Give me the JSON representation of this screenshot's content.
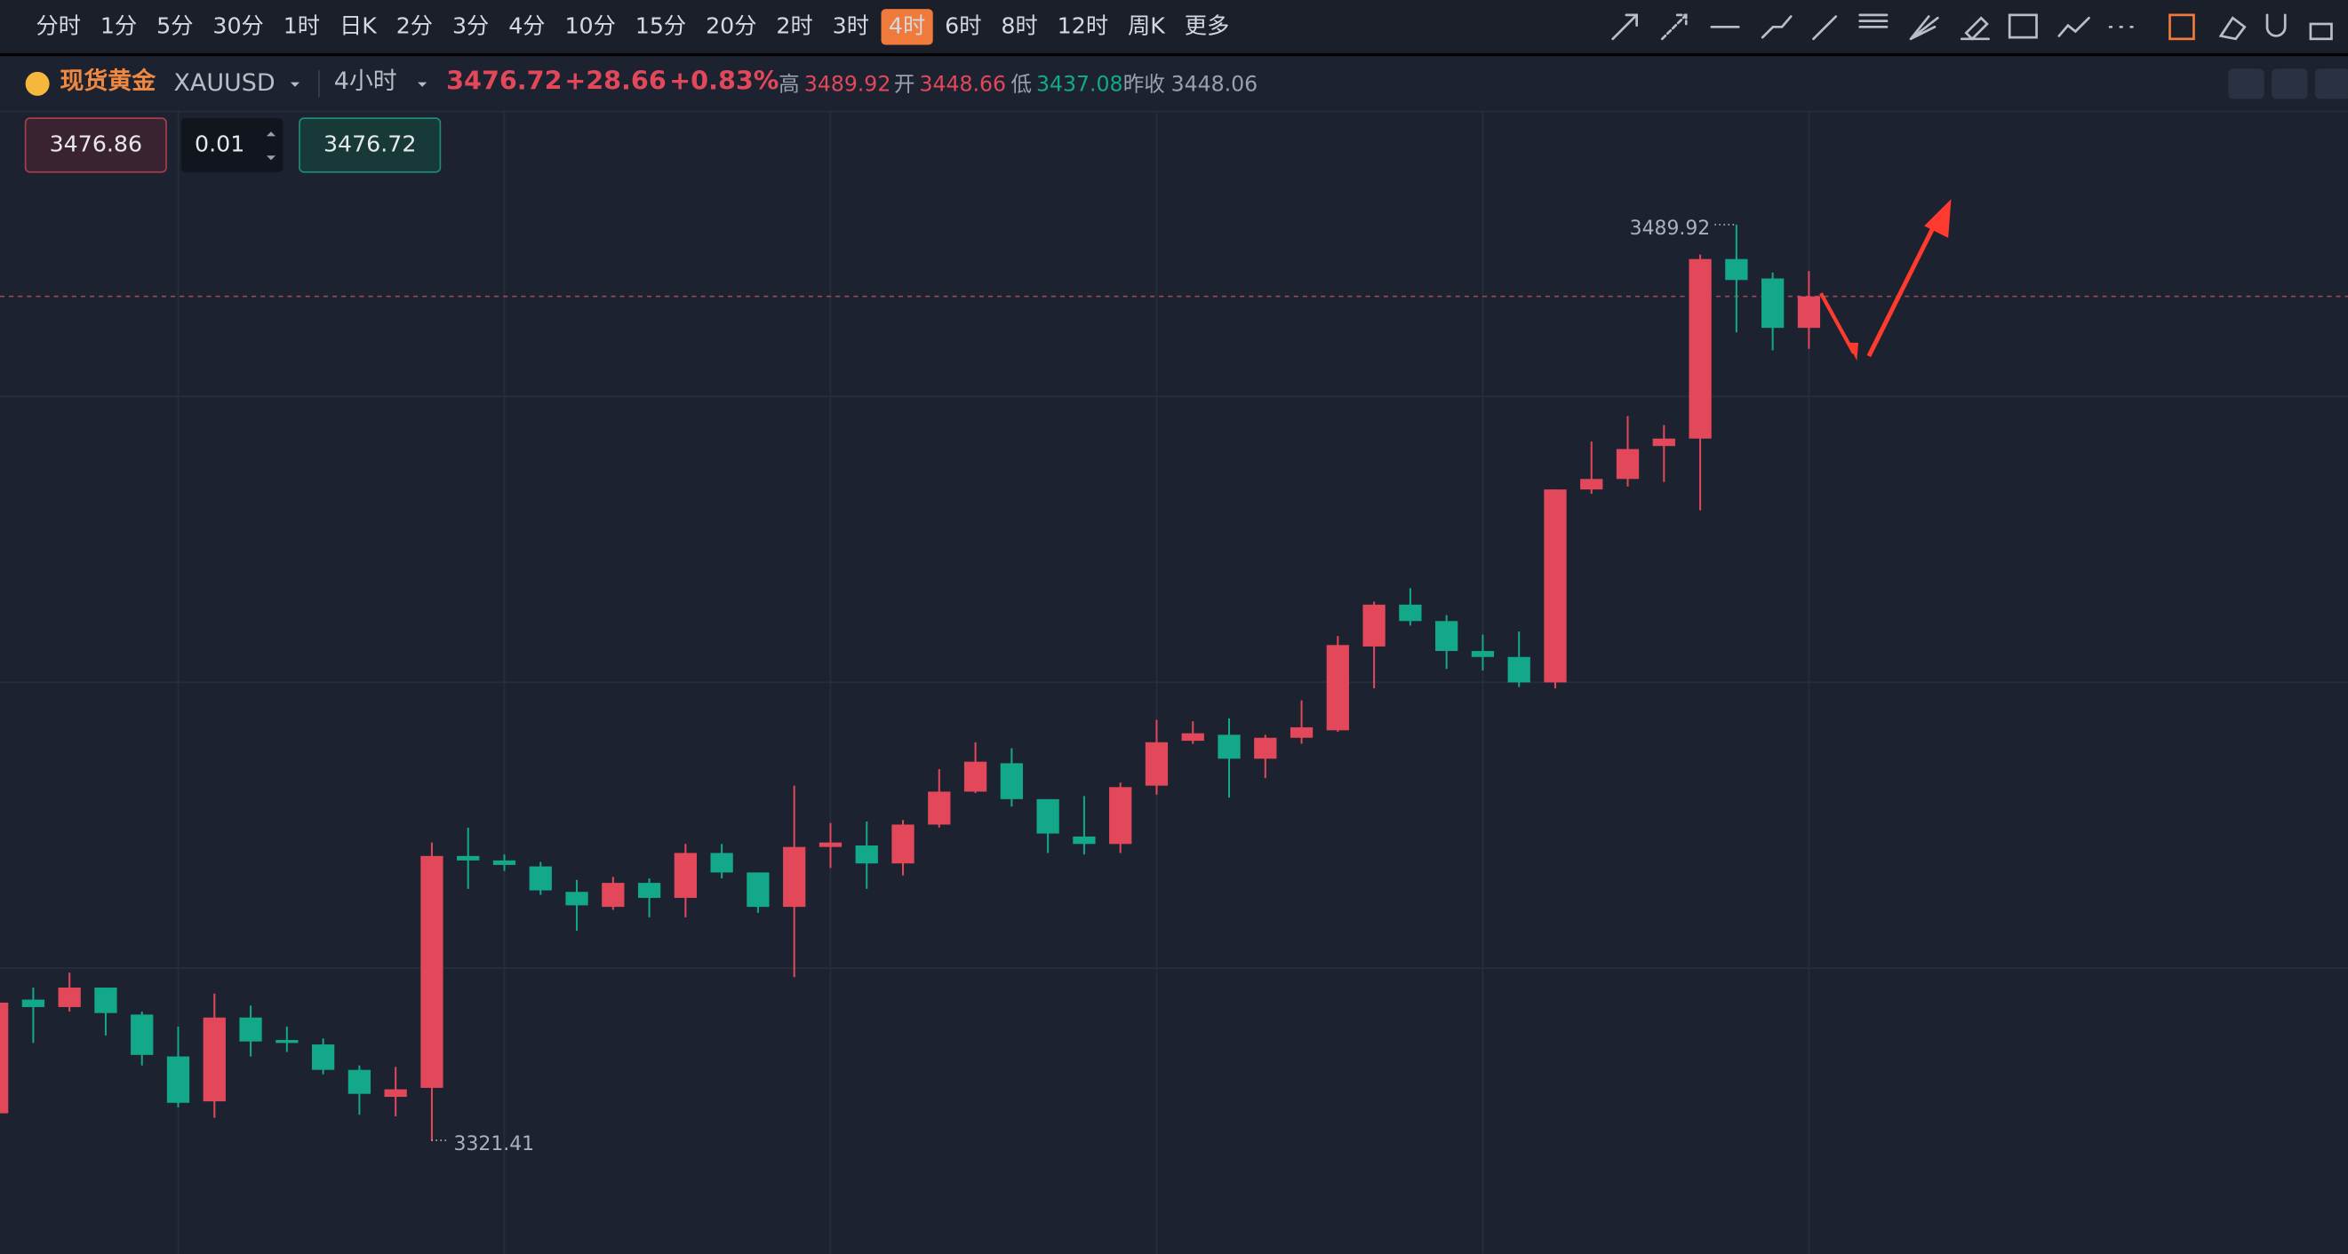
{
  "toolbar": {
    "periods": [
      "分时",
      "1分",
      "5分",
      "30分",
      "1时",
      "日K",
      "2分",
      "3分",
      "4分",
      "10分",
      "15分",
      "20分",
      "2时",
      "3时",
      "4时",
      "6时",
      "8时",
      "12时",
      "周K",
      "更多"
    ],
    "selected": 14
  },
  "header": {
    "name": "现货黄金",
    "symbol": "XAUUSD",
    "interval": "4小时",
    "price": "3476.72",
    "change": "+28.66",
    "change_pct": "+0.83%",
    "high_label": "高",
    "high": "3489.92",
    "open_label": "开",
    "open": "3448.66",
    "low_label": "低",
    "low": "3437.08",
    "prev_label": "昨收",
    "prev_close": "3448.06"
  },
  "order": {
    "sell": "3476.86",
    "lots": "0.01",
    "buy": "3476.72"
  },
  "chart_data": {
    "type": "candlestick",
    "up_color": "#e2485a",
    "down_color": "#13a88a",
    "ylim": [
      3300.5,
      3510.6
    ],
    "ygrid": [
      3353.1,
      3405.7,
      3458.3
    ],
    "xgrid": [
      5,
      14,
      23,
      32,
      41,
      50
    ],
    "price_line": 3476.72,
    "high_marker": 3489.92,
    "low_marker": 3321.41,
    "open": [
      3326.39,
      3347.31,
      3345.94,
      3349.52,
      3344.56,
      3336.85,
      3328.59,
      3344.01,
      3339.88,
      3339.06,
      3334.38,
      3329.42,
      3331.07,
      3373.74,
      3372.92,
      3371.82,
      3367.14,
      3364.38,
      3368.79,
      3366.03,
      3374.29,
      3370.71,
      3364.38,
      3375.4,
      3375.67,
      3372.37,
      3379.52,
      3385.58,
      3390.81,
      3384.2,
      3377.32,
      3375.95,
      3386.68,
      3394.94,
      3396.04,
      3391.64,
      3395.49,
      3396.87,
      3412.29,
      3419.99,
      3416.97,
      3411.46,
      3410.36,
      3405.68,
      3441.19,
      3443.12,
      3449.18,
      3450.55,
      3483.59,
      3480.01,
      3470.92
    ],
    "high": [
      3346.76,
      3349.52,
      3352.27,
      3349.52,
      3345.11,
      3342.36,
      3348.42,
      3346.21,
      3342.36,
      3340.16,
      3335.2,
      3334.93,
      3376.22,
      3378.97,
      3374.02,
      3372.64,
      3369.34,
      3369.89,
      3369.61,
      3375.95,
      3375.95,
      3370.71,
      3386.68,
      3379.8,
      3380.08,
      3380.35,
      3389.71,
      3394.67,
      3393.56,
      3384.2,
      3384.76,
      3387.23,
      3398.8,
      3398.52,
      3399.07,
      3396.04,
      3402.37,
      3414.21,
      3420.54,
      3423.02,
      3418.07,
      3414.49,
      3415.04,
      3441.19,
      3450.0,
      3454.68,
      3453.03,
      3484.41,
      3489.92,
      3481.11,
      3481.39
    ],
    "low": [
      3326.39,
      3339.33,
      3345.11,
      3340.71,
      3335.2,
      3327.49,
      3325.57,
      3336.85,
      3337.68,
      3333.55,
      3326.12,
      3325.84,
      3321.41,
      3367.69,
      3370.99,
      3366.59,
      3359.98,
      3363.83,
      3362.46,
      3362.46,
      3369.61,
      3363.28,
      3351.44,
      3371.54,
      3367.69,
      3370.16,
      3378.97,
      3385.31,
      3382.83,
      3374.29,
      3374.02,
      3374.29,
      3385.03,
      3394.39,
      3384.48,
      3388.06,
      3394.39,
      3396.59,
      3404.58,
      3416.14,
      3408.16,
      3407.88,
      3404.85,
      3404.58,
      3440.37,
      3441.74,
      3442.57,
      3437.34,
      3470.1,
      3466.79,
      3467.07
    ],
    "close": [
      3346.76,
      3345.94,
      3349.52,
      3344.84,
      3337.13,
      3328.32,
      3344.01,
      3339.61,
      3339.33,
      3334.38,
      3329.97,
      3330.8,
      3373.74,
      3372.92,
      3372.09,
      3367.41,
      3364.66,
      3368.79,
      3366.03,
      3374.29,
      3370.71,
      3364.38,
      3375.4,
      3376.22,
      3372.37,
      3379.52,
      3385.58,
      3391.09,
      3384.2,
      3377.87,
      3375.95,
      3386.41,
      3394.67,
      3396.32,
      3391.64,
      3395.49,
      3397.42,
      3412.56,
      3419.99,
      3416.97,
      3411.46,
      3410.36,
      3405.68,
      3441.19,
      3443.12,
      3448.62,
      3450.55,
      3483.59,
      3479.73,
      3470.92,
      3476.72
    ]
  }
}
